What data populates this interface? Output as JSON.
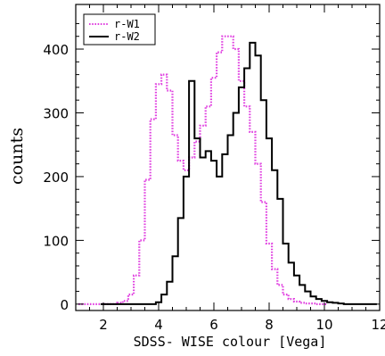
{
  "chart_data": {
    "type": "line",
    "xlabel": "SDSS- WISE colour [Vega]",
    "ylabel": "counts",
    "xlim": [
      1,
      12
    ],
    "ylim": [
      -10,
      470
    ],
    "xticks": [
      2,
      4,
      6,
      8,
      10,
      12
    ],
    "yticks": [
      0,
      100,
      200,
      300,
      400
    ],
    "legend_position": "top-left",
    "series": [
      {
        "name": "r-W1",
        "color": "#e040e0",
        "style": "dotted-step",
        "x": [
          1.2,
          1.4,
          1.6,
          1.8,
          2.0,
          2.2,
          2.4,
          2.6,
          2.8,
          3.0,
          3.2,
          3.4,
          3.6,
          3.8,
          4.0,
          4.2,
          4.4,
          4.6,
          4.8,
          5.0,
          5.2,
          5.4,
          5.6,
          5.8,
          6.0,
          6.2,
          6.4,
          6.6,
          6.8,
          7.0,
          7.2,
          7.4,
          7.6,
          7.8,
          8.0,
          8.2,
          8.4,
          8.6,
          8.8,
          9.0,
          9.2,
          9.4,
          9.6,
          9.8,
          10.0
        ],
        "y": [
          0,
          0,
          0,
          0,
          0,
          0,
          0,
          2,
          5,
          15,
          45,
          100,
          195,
          290,
          345,
          360,
          335,
          265,
          225,
          210,
          230,
          255,
          280,
          310,
          355,
          395,
          420,
          420,
          400,
          350,
          310,
          270,
          220,
          160,
          95,
          55,
          30,
          15,
          8,
          4,
          2,
          1,
          1,
          0,
          0
        ]
      },
      {
        "name": "r-W2",
        "color": "#000000",
        "style": "solid-step",
        "x": [
          2.0,
          2.2,
          2.4,
          2.6,
          2.8,
          3.0,
          3.2,
          3.4,
          3.6,
          3.8,
          4.0,
          4.2,
          4.4,
          4.6,
          4.8,
          5.0,
          5.2,
          5.4,
          5.6,
          5.8,
          6.0,
          6.2,
          6.4,
          6.6,
          6.8,
          7.0,
          7.2,
          7.4,
          7.6,
          7.8,
          8.0,
          8.2,
          8.4,
          8.6,
          8.8,
          9.0,
          9.2,
          9.4,
          9.6,
          9.8,
          10.0,
          10.2,
          10.4,
          10.6,
          10.8,
          11.0,
          11.2,
          11.4,
          11.6,
          11.8
        ],
        "y": [
          0,
          0,
          0,
          0,
          0,
          0,
          0,
          0,
          0,
          0,
          3,
          15,
          35,
          75,
          135,
          200,
          350,
          260,
          230,
          240,
          225,
          200,
          235,
          265,
          300,
          340,
          370,
          410,
          390,
          320,
          260,
          210,
          165,
          95,
          65,
          45,
          30,
          20,
          12,
          8,
          5,
          3,
          2,
          1,
          0,
          0,
          0,
          0,
          0,
          0
        ]
      }
    ]
  }
}
